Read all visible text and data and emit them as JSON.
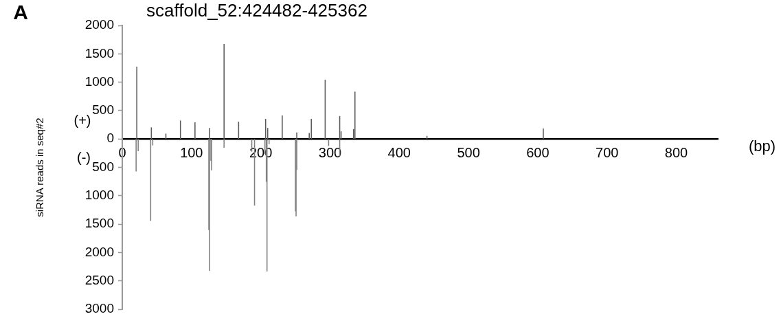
{
  "chart_data": {
    "type": "bar",
    "title": "scaffold_52:424482-425362",
    "xlabel": "(bp)",
    "ylabel": "siRNA reads in seq#2",
    "annotations": [
      "A",
      "(+)",
      "(-)"
    ],
    "series": [
      {
        "color": "#5a5a5a",
        "x": [
          21,
          42,
          63,
          84,
          105,
          126,
          147,
          168,
          207,
          210,
          231,
          252,
          270,
          273,
          293,
          314,
          316,
          334,
          336,
          440,
          608
        ],
        "values": [
          1270,
          200,
          90,
          320,
          290,
          190,
          1670,
          300,
          350,
          190,
          410,
          110,
          100,
          350,
          1040,
          400,
          130,
          170,
          830,
          50,
          180
        ]
      },
      {
        "color": "#808080",
        "x": [
          20,
          23,
          41,
          44,
          125,
          126,
          128,
          129,
          147,
          187,
          191,
          206,
          208,
          209,
          212,
          250,
          251,
          252,
          298,
          314
        ],
        "values": [
          -570,
          -210,
          -1440,
          -110,
          -1600,
          -2320,
          -380,
          -550,
          -150,
          -220,
          -1170,
          -260,
          -750,
          -2330,
          -90,
          -1270,
          -1360,
          -540,
          -120,
          -300
        ]
      }
    ],
    "xlim": [
      0,
      860
    ],
    "xticks": [
      0,
      100,
      200,
      300,
      400,
      500,
      600,
      700,
      800
    ],
    "ylim": [
      -3000,
      2000
    ],
    "yticks": [
      {
        "value": -3000,
        "label": "3000"
      },
      {
        "value": -2500,
        "label": "2500"
      },
      {
        "value": -2000,
        "label": "2000"
      },
      {
        "value": -1500,
        "label": "1500"
      },
      {
        "value": -1000,
        "label": "1000"
      },
      {
        "value": -500,
        "label": "500"
      },
      0,
      500,
      1000,
      1500,
      2000
    ],
    "grid": false
  }
}
